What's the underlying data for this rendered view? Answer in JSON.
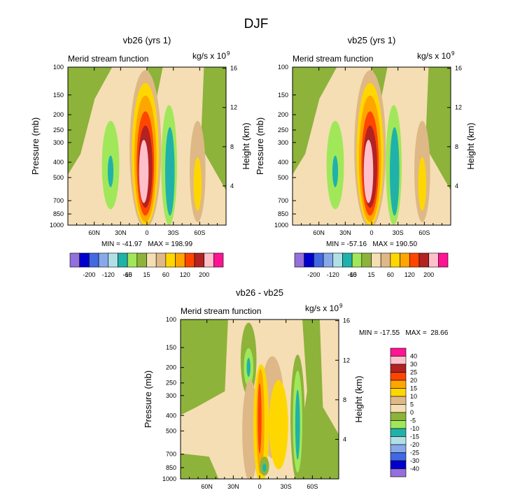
{
  "figure_title": "DJF",
  "chart_data": [
    {
      "type": "heatmap",
      "title": "vb26 (yrs 1)",
      "left_label": "Merid stream function",
      "units": "kg/s x 10",
      "units_exp": "9",
      "ylabel": "Pressure (mb)",
      "ylabel_right": "Height (km)",
      "x_ticks": [
        "60N",
        "30N",
        "0",
        "30S",
        "60S"
      ],
      "x_tick_values": [
        60,
        30,
        0,
        -30,
        -60
      ],
      "xlim": [
        90,
        -90
      ],
      "y_ticks": [
        "100",
        "150",
        "200",
        "250",
        "300",
        "400",
        "500",
        "700",
        "850",
        "1000"
      ],
      "y_tick_values": [
        100,
        150,
        200,
        250,
        300,
        400,
        500,
        700,
        850,
        1000
      ],
      "ylim": [
        100,
        1000
      ],
      "height_ticks": [
        "4",
        "8",
        "12",
        "16"
      ],
      "height_tick_values": [
        4,
        8,
        12,
        16
      ],
      "stats": "MIN = -41.97   MAX = 198.99",
      "min": -41.97,
      "max": 198.99,
      "colorbar_labels": [
        "-200",
        "-120",
        "-60",
        "-15",
        "15",
        "60",
        "120",
        "200"
      ],
      "levels": [
        -200,
        -160,
        -120,
        -80,
        -60,
        -40,
        -15,
        0,
        15,
        40,
        60,
        80,
        120,
        160,
        200
      ]
    },
    {
      "type": "heatmap",
      "title": "vb25 (yrs 1)",
      "left_label": "Merid stream function",
      "units": "kg/s x 10",
      "units_exp": "9",
      "ylabel": "Pressure (mb)",
      "ylabel_right": "Height (km)",
      "x_ticks": [
        "60N",
        "30N",
        "0",
        "30S",
        "60S"
      ],
      "x_tick_values": [
        60,
        30,
        0,
        -30,
        -60
      ],
      "xlim": [
        90,
        -90
      ],
      "y_ticks": [
        "100",
        "150",
        "200",
        "250",
        "300",
        "400",
        "500",
        "700",
        "850",
        "1000"
      ],
      "y_tick_values": [
        100,
        150,
        200,
        250,
        300,
        400,
        500,
        700,
        850,
        1000
      ],
      "ylim": [
        100,
        1000
      ],
      "height_ticks": [
        "4",
        "8",
        "12",
        "16"
      ],
      "height_tick_values": [
        4,
        8,
        12,
        16
      ],
      "stats": "MIN = -57.16   MAX = 190.50",
      "min": -57.16,
      "max": 190.5,
      "colorbar_labels": [
        "-200",
        "-120",
        "-60",
        "-15",
        "15",
        "60",
        "120",
        "200"
      ],
      "levels": [
        -200,
        -160,
        -120,
        -80,
        -60,
        -40,
        -15,
        0,
        15,
        40,
        60,
        80,
        120,
        160,
        200
      ]
    },
    {
      "type": "heatmap",
      "title": "vb26 - vb25",
      "left_label": "Merid stream function",
      "units": "kg/s x 10",
      "units_exp": "9",
      "ylabel": "Pressure (mb)",
      "ylabel_right": "Height (km)",
      "x_ticks": [
        "60N",
        "30N",
        "0",
        "30S",
        "60S"
      ],
      "x_tick_values": [
        60,
        30,
        0,
        -30,
        -60
      ],
      "xlim": [
        90,
        -90
      ],
      "y_ticks": [
        "100",
        "150",
        "200",
        "250",
        "300",
        "400",
        "500",
        "700",
        "850",
        "1000"
      ],
      "y_tick_values": [
        100,
        150,
        200,
        250,
        300,
        400,
        500,
        700,
        850,
        1000
      ],
      "ylim": [
        100,
        1000
      ],
      "height_ticks": [
        "4",
        "8",
        "12",
        "16"
      ],
      "height_tick_values": [
        4,
        8,
        12,
        16
      ],
      "stats": "MIN = -17.55   MAX =  28.66",
      "min": -17.55,
      "max": 28.66,
      "colorbar_labels": [
        "40",
        "30",
        "25",
        "20",
        "15",
        "10",
        "5",
        "0",
        "-5",
        "-10",
        "-15",
        "-20",
        "-25",
        "-30",
        "-40"
      ],
      "levels": [
        -40,
        -30,
        -25,
        -20,
        -15,
        -10,
        -5,
        0,
        5,
        10,
        15,
        20,
        25,
        30,
        40
      ]
    }
  ],
  "colors": [
    "#9370db",
    "#0000cd",
    "#4169e1",
    "#87a9e9",
    "#b0e0e6",
    "#20b2aa",
    "#a0e85a",
    "#8db33a",
    "#f5deb3",
    "#deb887",
    "#ffd700",
    "#ffa500",
    "#ff4500",
    "#b22222",
    "#ffc0cb",
    "#ff1493"
  ]
}
